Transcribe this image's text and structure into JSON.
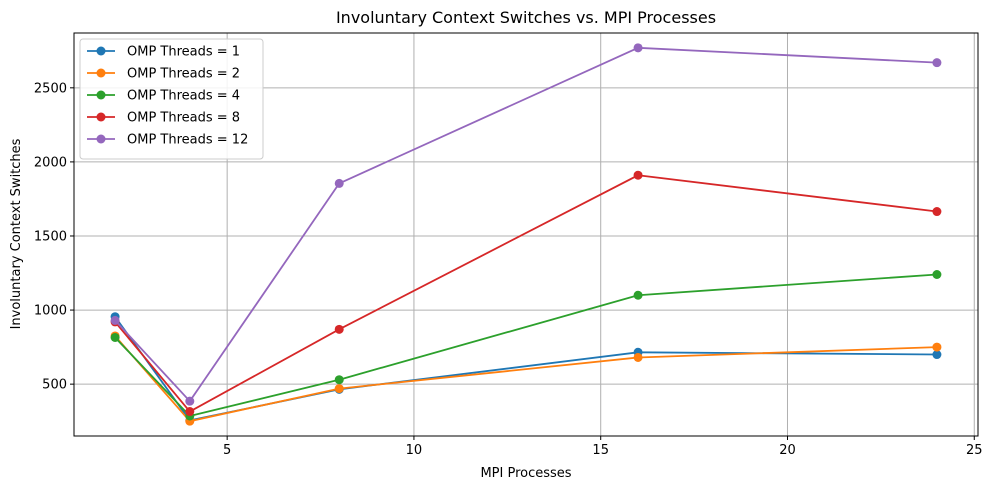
{
  "chart_data": {
    "type": "line",
    "title": "Involuntary Context Switches vs. MPI Processes",
    "xlabel": "MPI Processes",
    "ylabel": "Involuntary Context Switches",
    "x": [
      2,
      4,
      8,
      16,
      24
    ],
    "xlim": [
      0.9,
      25.1
    ],
    "ylim": [
      150,
      2870
    ],
    "xticks": [
      5,
      10,
      15,
      20,
      25
    ],
    "yticks": [
      500,
      1000,
      1500,
      2000,
      2500
    ],
    "grid": true,
    "legend_position": "upper-left",
    "series": [
      {
        "name": "OMP Threads = 1",
        "color": "#1f77b4",
        "values": [
          955,
          255,
          465,
          715,
          700
        ]
      },
      {
        "name": "OMP Threads = 2",
        "color": "#ff7f0e",
        "values": [
          825,
          250,
          470,
          680,
          750
        ]
      },
      {
        "name": "OMP Threads = 4",
        "color": "#2ca02c",
        "values": [
          815,
          285,
          530,
          1100,
          1240
        ]
      },
      {
        "name": "OMP Threads = 8",
        "color": "#d62728",
        "values": [
          920,
          315,
          870,
          1910,
          1665
        ]
      },
      {
        "name": "OMP Threads = 12",
        "color": "#9467bd",
        "values": [
          930,
          385,
          1855,
          2770,
          2670
        ]
      }
    ]
  }
}
